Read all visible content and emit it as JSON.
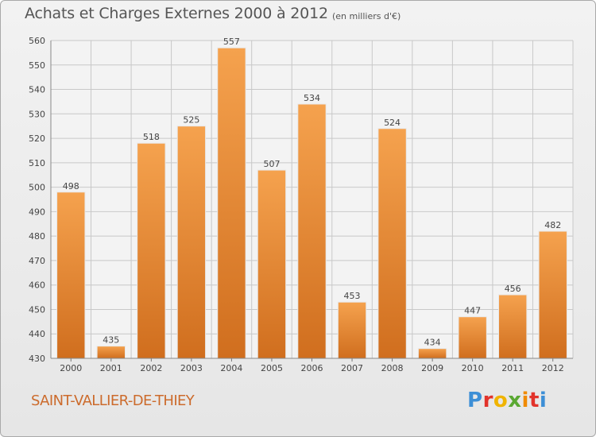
{
  "title": "Achats et Charges Externes 2000 à 2012",
  "subtitle": "(en milliers d'€)",
  "commune": "SAINT-VALLIER-DE-THIEY",
  "logo_letters": [
    "P",
    "r",
    "o",
    "x",
    "i",
    "t",
    "i"
  ],
  "colors": {
    "bar_top": "#f5a24e",
    "bar_bottom": "#d06e1e",
    "grid": "#c8c8c8",
    "commune": "#cc6b2c"
  },
  "chart_data": {
    "type": "bar",
    "categories": [
      "2000",
      "2001",
      "2002",
      "2003",
      "2004",
      "2005",
      "2006",
      "2007",
      "2008",
      "2009",
      "2010",
      "2011",
      "2012"
    ],
    "values": [
      498,
      435,
      518,
      525,
      557,
      507,
      534,
      453,
      524,
      434,
      447,
      456,
      482
    ],
    "ylim": [
      430,
      560
    ],
    "yticks": [
      430,
      440,
      450,
      460,
      470,
      480,
      490,
      500,
      510,
      520,
      530,
      540,
      550,
      560
    ],
    "grid": true,
    "title": "Achats et Charges Externes 2000 à 2012",
    "xlabel": "",
    "ylabel": ""
  }
}
